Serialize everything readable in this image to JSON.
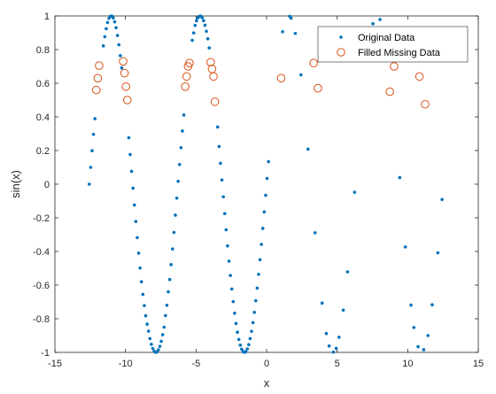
{
  "chart_data": {
    "type": "scatter",
    "title": "",
    "xlabel": "x",
    "ylabel": "sin(x)",
    "xlim": [
      -15,
      15
    ],
    "ylim": [
      -1,
      1
    ],
    "xticks": [
      -15,
      -10,
      -5,
      0,
      5,
      10,
      15
    ],
    "yticks": [
      -1,
      -0.8,
      -0.6,
      -0.4,
      -0.2,
      0,
      0.2,
      0.4,
      0.6,
      0.8,
      1
    ],
    "xtick_labels": [
      "-15",
      "-10",
      "-5",
      "0",
      "5",
      "10",
      "15"
    ],
    "ytick_labels": [
      "-1",
      "-0.8",
      "-0.6",
      "-0.4",
      "-0.2",
      "0",
      "0.2",
      "0.4",
      "0.6",
      "0.8",
      "1"
    ],
    "grid": false,
    "legend_position": "top-right",
    "series": [
      {
        "name": "Original Data",
        "marker": "dot",
        "color": "#0072BD",
        "x": [
          -12.566,
          -12.466,
          -12.366,
          -12.266,
          -12.166,
          -11.566,
          -11.466,
          -11.366,
          -11.266,
          -11.166,
          -11.066,
          -10.966,
          -10.866,
          -10.766,
          -10.666,
          -10.566,
          -10.466,
          -10.366,
          -10.266,
          -9.766,
          -9.666,
          -9.566,
          -9.466,
          -9.366,
          -9.266,
          -9.166,
          -9.066,
          -8.966,
          -8.866,
          -8.766,
          -8.666,
          -8.566,
          -8.466,
          -8.366,
          -8.266,
          -8.166,
          -8.066,
          -7.966,
          -7.866,
          -7.766,
          -7.666,
          -7.566,
          -7.466,
          -7.366,
          -7.266,
          -7.166,
          -7.066,
          -6.966,
          -6.866,
          -6.766,
          -6.666,
          -6.566,
          -6.466,
          -6.366,
          -6.266,
          -6.166,
          -6.066,
          -5.966,
          -5.866,
          -5.266,
          -5.166,
          -5.066,
          -4.966,
          -4.866,
          -4.766,
          -4.666,
          -4.566,
          -4.466,
          -4.366,
          -4.266,
          -4.166,
          -4.066,
          -3.466,
          -3.366,
          -3.266,
          -3.166,
          -3.066,
          -2.966,
          -2.866,
          -2.766,
          -2.666,
          -2.566,
          -2.466,
          -2.366,
          -2.266,
          -2.166,
          -2.066,
          -1.966,
          -1.866,
          -1.766,
          -1.666,
          -1.566,
          -1.466,
          -1.366,
          -1.266,
          -1.166,
          -1.066,
          -0.966,
          -0.866,
          -0.766,
          -0.666,
          -0.566,
          -0.466,
          -0.366,
          -0.266,
          -0.166,
          -0.066,
          0.034,
          0.134,
          1.134,
          1.634,
          1.734,
          2.034,
          2.434,
          2.934,
          3.434,
          3.934,
          4.234,
          4.434,
          4.734,
          4.934,
          5.134,
          5.434,
          5.734,
          6.234,
          7.534,
          8.034,
          8.534,
          9.434,
          9.834,
          10.234,
          10.434,
          10.734,
          11.134,
          11.434,
          11.734,
          12.134,
          12.434
        ],
        "y": [
          0.0,
          0.1,
          0.199,
          0.296,
          0.389,
          0.822,
          0.877,
          0.924,
          0.961,
          0.986,
          0.998,
          0.999,
          0.988,
          0.965,
          0.93,
          0.884,
          0.829,
          0.764,
          0.691,
          0.276,
          0.176,
          0.076,
          -0.024,
          -0.124,
          -0.222,
          -0.318,
          -0.41,
          -0.498,
          -0.58,
          -0.655,
          -0.722,
          -0.782,
          -0.832,
          -0.874,
          -0.918,
          -0.952,
          -0.977,
          -0.993,
          -1.0,
          -0.997,
          -0.985,
          -0.964,
          -0.934,
          -0.895,
          -0.85,
          -0.781,
          -0.72,
          -0.64,
          -0.567,
          -0.478,
          -0.385,
          -0.287,
          -0.184,
          -0.083,
          0.017,
          0.117,
          0.217,
          0.316,
          0.411,
          0.855,
          0.899,
          0.944,
          0.971,
          0.989,
          0.998,
          0.999,
          0.99,
          0.972,
          0.945,
          0.909,
          0.864,
          0.81,
          0.34,
          0.224,
          0.124,
          0.025,
          -0.075,
          -0.175,
          -0.271,
          -0.367,
          -0.458,
          -0.543,
          -0.623,
          -0.698,
          -0.767,
          -0.828,
          -0.88,
          -0.923,
          -0.957,
          -0.981,
          -0.995,
          -1.0,
          -0.995,
          -0.979,
          -0.954,
          -0.918,
          -0.875,
          -0.823,
          -0.762,
          -0.693,
          -0.618,
          -0.536,
          -0.449,
          -0.358,
          -0.263,
          -0.165,
          -0.066,
          0.034,
          0.134,
          0.906,
          0.998,
          0.987,
          0.896,
          0.65,
          0.208,
          -0.289,
          -0.707,
          -0.888,
          -0.962,
          -0.998,
          -0.976,
          -0.91,
          -0.749,
          -0.521,
          -0.048,
          0.954,
          0.979,
          0.777,
          0.039,
          -0.373,
          -0.719,
          -0.852,
          -0.966,
          -0.984,
          -0.9,
          -0.717,
          -0.408,
          -0.091
        ]
      },
      {
        "name": "Filled Missing Data",
        "marker": "circle",
        "color": "#D95319",
        "x": [
          -12.066,
          -11.966,
          -11.866,
          -10.166,
          -10.066,
          -9.966,
          -9.866,
          -5.766,
          -5.666,
          -5.566,
          -5.466,
          -3.966,
          -3.866,
          -3.766,
          -3.666,
          1.034,
          3.334,
          3.634,
          8.734,
          9.034,
          10.834,
          11.234
        ],
        "y": [
          0.56,
          0.63,
          0.705,
          0.73,
          0.66,
          0.58,
          0.5,
          0.58,
          0.64,
          0.7,
          0.72,
          0.725,
          0.685,
          0.64,
          0.49,
          0.63,
          0.72,
          0.57,
          0.55,
          0.7,
          0.64,
          0.475
        ]
      }
    ]
  }
}
